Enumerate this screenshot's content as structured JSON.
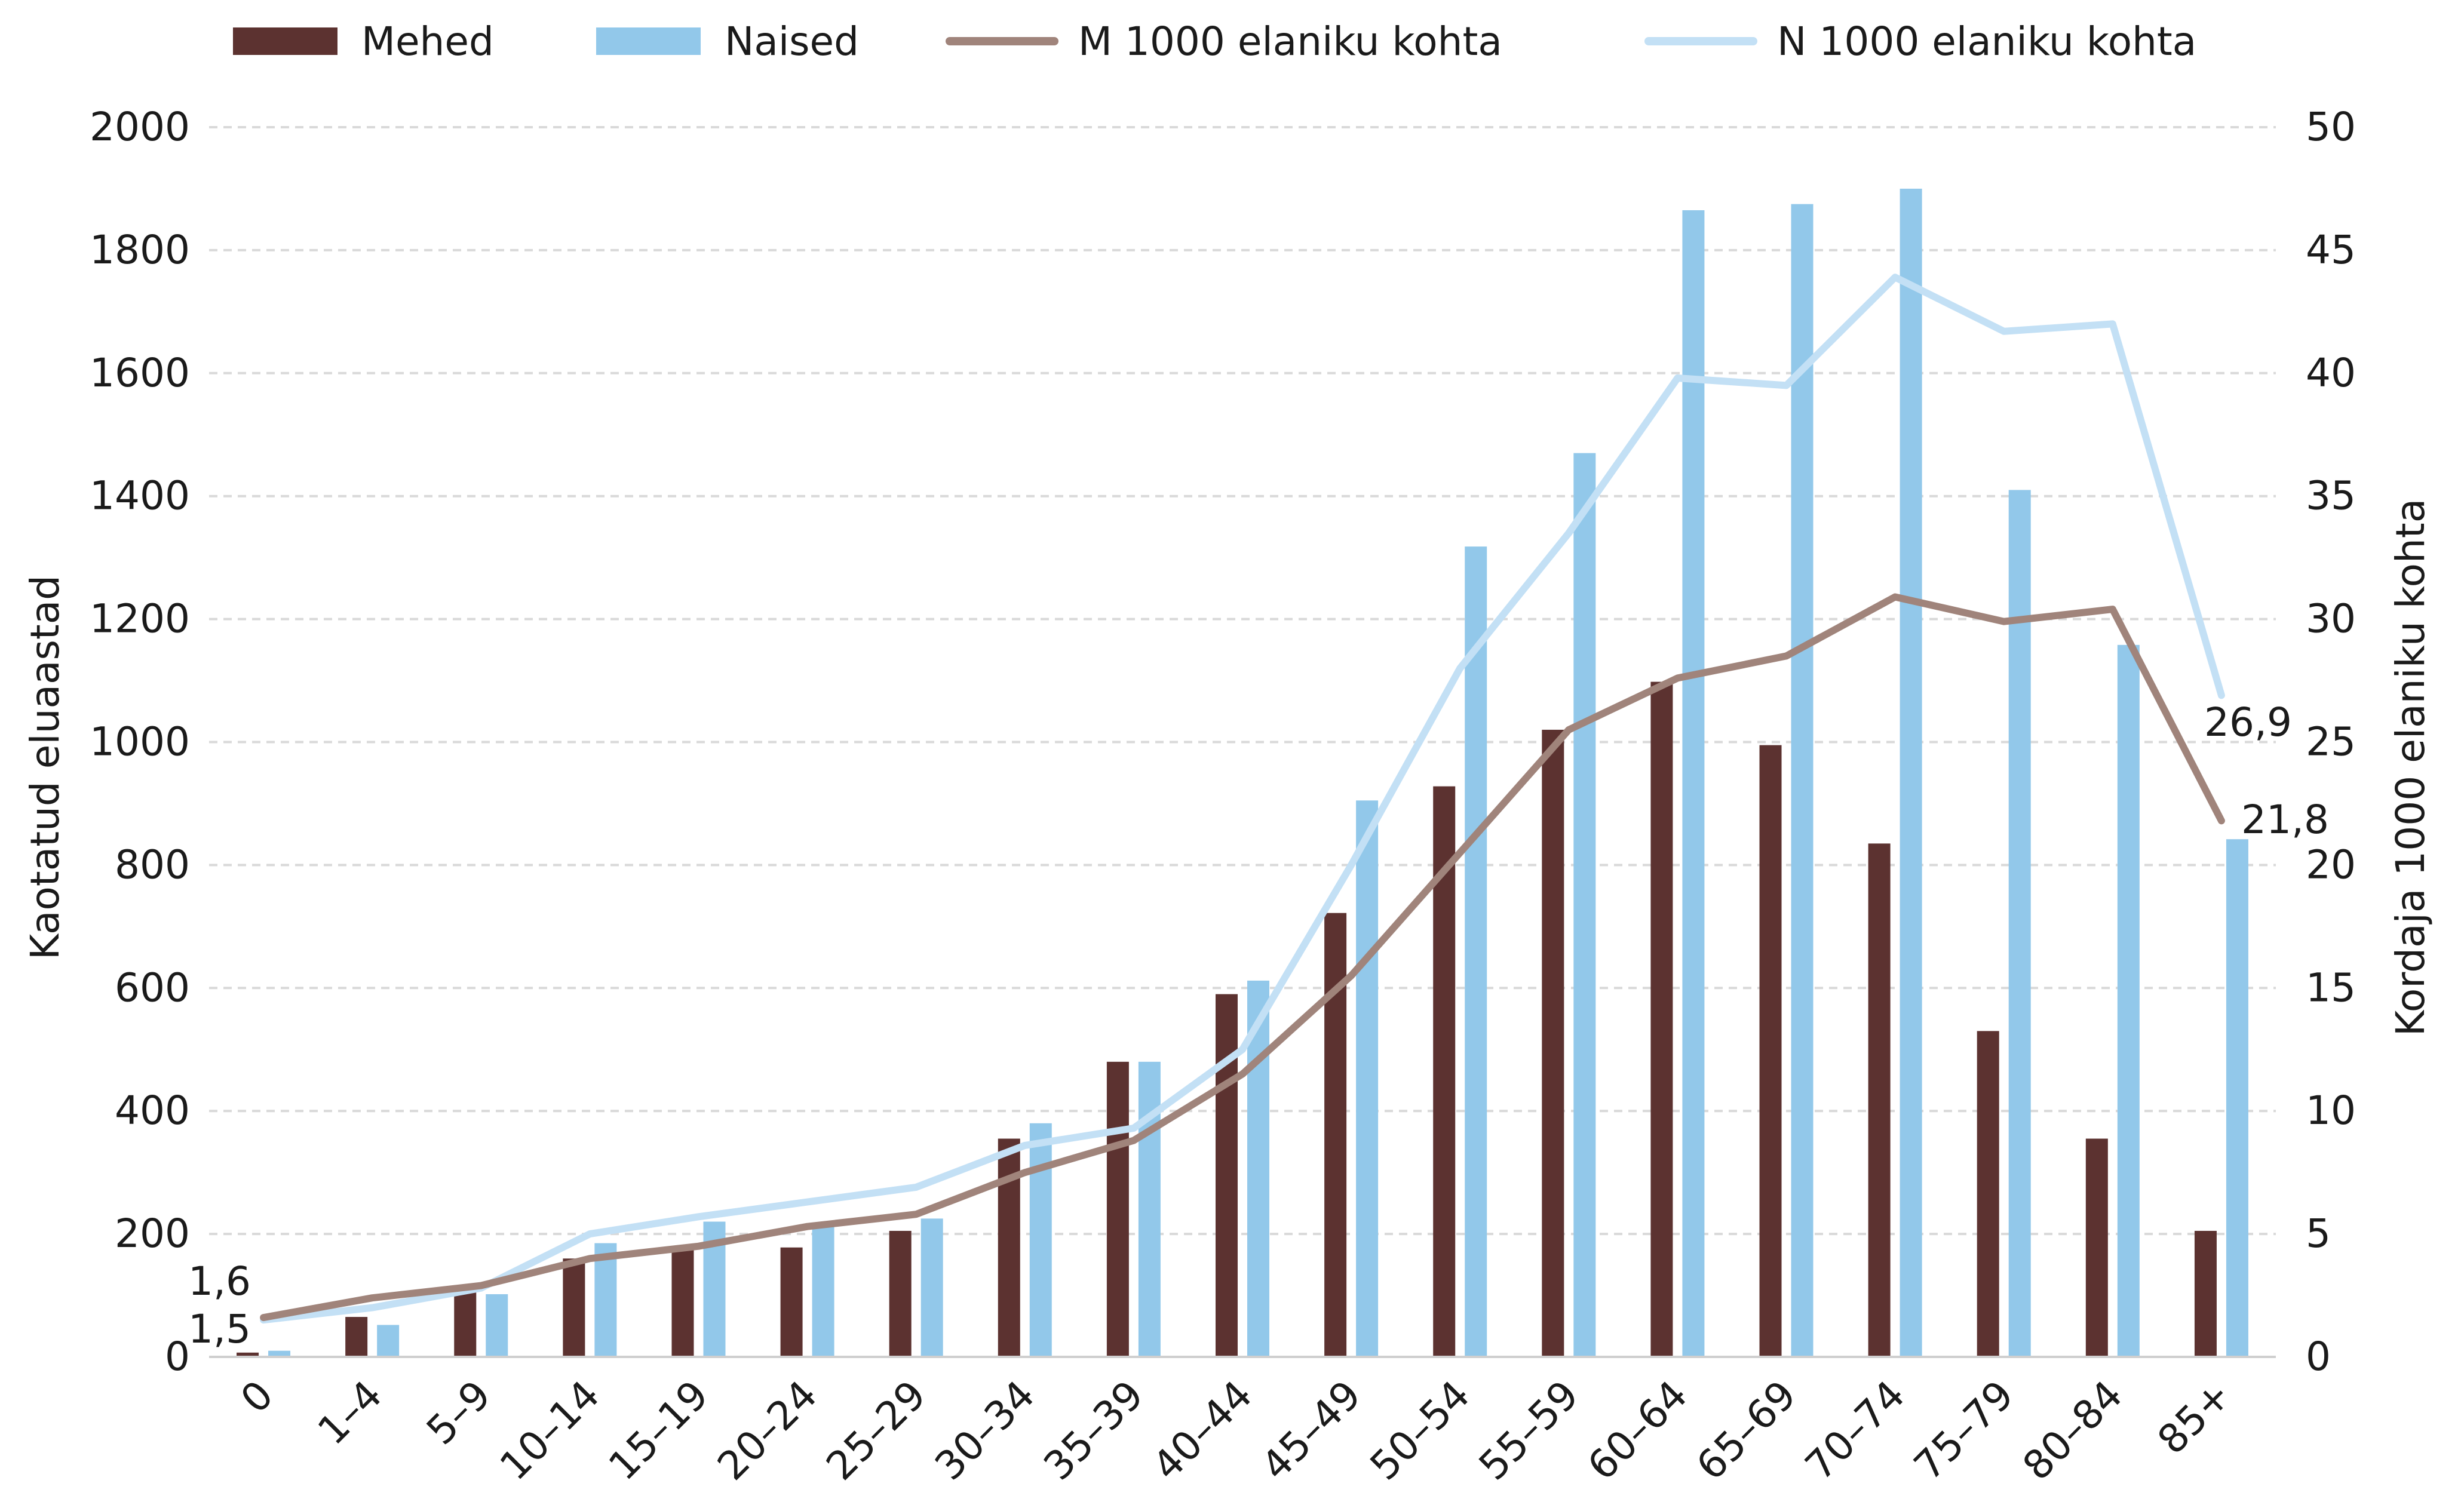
{
  "chart_data": {
    "type": "bar",
    "title": "",
    "xlabel": "",
    "ylabel": "Kaotatud eluaastad",
    "y2label": "Kordaja 1000 elaniku kohta",
    "ylim": [
      0,
      2000
    ],
    "y2lim": [
      0,
      50
    ],
    "yticks": [
      "0",
      "200",
      "400",
      "600",
      "800",
      "1000",
      "1200",
      "1400",
      "1600",
      "1800",
      "2000"
    ],
    "y2ticks": [
      "0",
      "5",
      "10",
      "15",
      "20",
      "25",
      "30",
      "35",
      "40",
      "45",
      "50"
    ],
    "grid": true,
    "legend_position": "top",
    "categories": [
      "0",
      "1–4",
      "5–9",
      "10–14",
      "15–19",
      "20–24",
      "25–29",
      "30–34",
      "35–39",
      "40–44",
      "45–49",
      "50–54",
      "55–59",
      "60–64",
      "65–69",
      "70–74",
      "75–79",
      "80–84",
      "85+"
    ],
    "series": [
      {
        "name": "Mehed",
        "type": "bar",
        "axis": "left",
        "color": "#5c3230",
        "values": [
          7,
          65,
          110,
          160,
          180,
          178,
          205,
          355,
          480,
          590,
          722,
          928,
          1020,
          1098,
          995,
          835,
          530,
          355,
          205
        ]
      },
      {
        "name": "Naised",
        "type": "bar",
        "axis": "left",
        "color": "#92c8ea",
        "values": [
          10,
          52,
          102,
          185,
          220,
          215,
          225,
          380,
          480,
          612,
          905,
          1318,
          1470,
          1865,
          1875,
          1900,
          1410,
          1158,
          842
        ]
      },
      {
        "name": "M 1000 elaniku kohta",
        "type": "line",
        "axis": "right",
        "color": "#a0847b",
        "values": [
          1.6,
          2.4,
          2.9,
          4.0,
          4.5,
          5.3,
          5.8,
          7.5,
          8.8,
          11.5,
          15.5,
          20.5,
          25.5,
          27.6,
          28.5,
          30.9,
          29.9,
          30.4,
          21.8
        ]
      },
      {
        "name": "N 1000 elaniku kohta",
        "type": "line",
        "axis": "right",
        "color": "#c3e0f5",
        "values": [
          1.5,
          2.0,
          2.8,
          5.0,
          5.7,
          6.3,
          6.9,
          8.6,
          9.3,
          12.5,
          20.0,
          28.0,
          33.5,
          39.8,
          39.5,
          43.9,
          41.7,
          42.0,
          26.9
        ]
      }
    ],
    "annotations": [
      "1,6",
      "1,5",
      "26,9",
      "21,8"
    ]
  }
}
